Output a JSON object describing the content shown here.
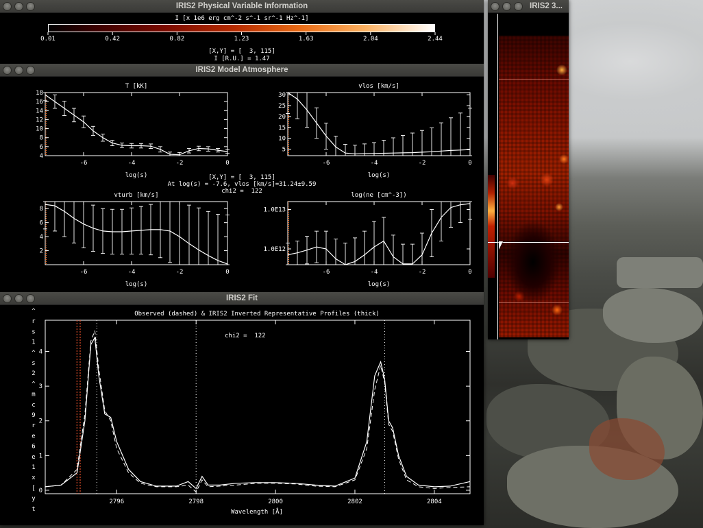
{
  "windows": {
    "info": {
      "title": "IRIS2 Physical Variable Information",
      "colorbar": {
        "label": "I [x 1e6 erg cm^-2 s^-1 sr^-1 Hz^-1]",
        "ticks": [
          "0.01",
          "0.42",
          "0.82",
          "1.23",
          "1.63",
          "2.04",
          "2.44"
        ]
      },
      "xy": "[X,Y] = [  3, 115]",
      "intensity": "I [R.U.] = 1.47"
    },
    "atmos": {
      "title": "IRIS2 Model Atmosphere",
      "center_text": {
        "xy": "[X,Y] = [  3, 115]",
        "at": "At log(s) = -7.6, vlos [km/s]=31.24±9.59",
        "chi2": "chi2 =  122"
      },
      "plots": {
        "T": {
          "title": "T [kK]",
          "xlabel": "log(s)",
          "yticks": [
            "4",
            "6",
            "8",
            "10",
            "12",
            "14",
            "16",
            "18"
          ],
          "xticks": [
            "-6",
            "-4",
            "-2",
            "0"
          ]
        },
        "vlos": {
          "title": "vlos [km/s]",
          "xlabel": "log(s)",
          "yticks": [
            "5",
            "10",
            "15",
            "20",
            "25",
            "30"
          ],
          "xticks": [
            "-6",
            "-4",
            "-2",
            "0"
          ]
        },
        "vturb": {
          "title": "vturb [km/s]",
          "xlabel": "log(s)",
          "yticks": [
            "2",
            "4",
            "6",
            "8"
          ],
          "xticks": [
            "-6",
            "-4",
            "-2",
            "0"
          ]
        },
        "ne": {
          "title": "log(ne [cm^-3])",
          "xlabel": "log(s)",
          "yticks": [
            "1.0E12",
            "1.0E13"
          ],
          "xticks": [
            "-6",
            "-4",
            "-2",
            "0"
          ]
        }
      }
    },
    "fit": {
      "title": "IRIS2 Fit",
      "plot_title": "Observed (dashed) & IRIS2 Inverted Representative Profiles (thick)",
      "chi2": "chi2 =  122",
      "xlabel": "Wavelength [Å]",
      "ylabel_chars": [
        "^",
        "r",
        "s",
        "1",
        "^",
        "s",
        "2",
        "^",
        "m",
        "c",
        "9",
        "r",
        "e",
        "6",
        "e",
        "1",
        "x",
        "[",
        "y",
        "t"
      ],
      "xticks": [
        "2796",
        "2798",
        "2800",
        "2802",
        "2804"
      ],
      "yticks": [
        "0",
        "1",
        "2",
        "3",
        "4"
      ]
    },
    "map": {
      "title": "IRIS2 3..."
    }
  },
  "chart_data": [
    {
      "type": "line",
      "title": "T [kK]",
      "xlabel": "log(s)",
      "xlim": [
        -7.6,
        0
      ],
      "ylim": [
        4,
        18
      ],
      "x": [
        -7.6,
        -7.2,
        -6.8,
        -6.4,
        -6.0,
        -5.6,
        -5.2,
        -4.8,
        -4.4,
        -4.0,
        -3.6,
        -3.2,
        -2.8,
        -2.4,
        -2.0,
        -1.6,
        -1.2,
        -0.8,
        -0.4,
        0
      ],
      "series": [
        {
          "values": [
            17.5,
            16,
            14.5,
            13,
            11.5,
            9.5,
            8,
            6.8,
            6.3,
            6.2,
            6.2,
            6.1,
            5.4,
            4.3,
            4.2,
            5.1,
            5.6,
            5.5,
            5.2,
            4.9
          ],
          "err": [
            1.3,
            1.5,
            1.6,
            1.5,
            1.3,
            1.0,
            0.8,
            0.6,
            0.5,
            0.5,
            0.5,
            0.5,
            0.6,
            0.5,
            0.5,
            0.5,
            0.5,
            0.5,
            0.4,
            0.4
          ]
        }
      ]
    },
    {
      "type": "line",
      "title": "vlos [km/s]",
      "xlabel": "log(s)",
      "xlim": [
        -7.6,
        0
      ],
      "ylim": [
        2,
        31
      ],
      "x": [
        -7.6,
        -7.2,
        -6.8,
        -6.4,
        -6.0,
        -5.6,
        -5.2,
        -4.8,
        -4.4,
        -4.0,
        -3.6,
        -3.2,
        -2.8,
        -2.4,
        -2.0,
        -1.6,
        -1.2,
        -0.8,
        -0.4,
        0
      ],
      "series": [
        {
          "values": [
            31,
            28,
            23,
            17,
            11,
            6,
            3.2,
            2.8,
            2.9,
            3,
            3.1,
            3.2,
            3.3,
            3.4,
            3.6,
            3.8,
            4.1,
            4.4,
            4.6,
            4.8
          ],
          "err": [
            9.6,
            9,
            8,
            7,
            6,
            5,
            4,
            4,
            4.5,
            5,
            6,
            7,
            8,
            9,
            10,
            11,
            13,
            15,
            17,
            19
          ]
        }
      ]
    },
    {
      "type": "line",
      "title": "vturb [km/s]",
      "xlabel": "log(s)",
      "xlim": [
        -7.6,
        0
      ],
      "ylim": [
        0,
        9
      ],
      "x": [
        -7.6,
        -7.2,
        -6.8,
        -6.4,
        -6.0,
        -5.6,
        -5.2,
        -4.8,
        -4.4,
        -4.0,
        -3.6,
        -3.2,
        -2.8,
        -2.4,
        -2.0,
        -1.6,
        -1.2,
        -0.8,
        -0.4,
        0
      ],
      "series": [
        {
          "values": [
            8.6,
            8.4,
            7.6,
            6.6,
            5.8,
            5.2,
            4.8,
            4.7,
            4.7,
            4.8,
            4.9,
            5,
            5,
            4.8,
            4,
            3,
            2.1,
            1.3,
            0.6,
            0.1
          ],
          "err": [
            3.5,
            3.6,
            3.6,
            3.5,
            3.4,
            3.3,
            3.2,
            3.2,
            3.2,
            3.3,
            3.4,
            3.6,
            4,
            4.5,
            5,
            5.5,
            6,
            6.3,
            6.6,
            7
          ]
        }
      ]
    },
    {
      "type": "line",
      "title": "log(ne [cm^-3])",
      "xlabel": "log(s)",
      "xlim": [
        -7.6,
        0
      ],
      "x": [
        -7.6,
        -7.2,
        -6.8,
        -6.4,
        -6.0,
        -5.6,
        -5.2,
        -4.8,
        -4.4,
        -4.0,
        -3.6,
        -3.2,
        -2.8,
        -2.4,
        -2.0,
        -1.6,
        -1.2,
        -0.8,
        -0.4,
        0
      ],
      "series": [
        {
          "values": [
            11.85,
            11.9,
            11.97,
            12.05,
            12.0,
            11.75,
            11.6,
            11.68,
            11.85,
            12.05,
            12.2,
            11.8,
            11.62,
            11.62,
            11.85,
            12.4,
            12.8,
            13.05,
            13.12,
            13.15
          ],
          "err": [
            0.3,
            0.3,
            0.35,
            0.4,
            0.45,
            0.5,
            0.55,
            0.6,
            0.6,
            0.65,
            0.6,
            0.55,
            0.5,
            0.5,
            0.55,
            0.6,
            0.6,
            0.5,
            0.45,
            0.4
          ]
        }
      ]
    },
    {
      "type": "line",
      "title": "Observed (dashed) & IRIS2 Inverted Representative Profiles (thick)",
      "xlabel": "Wavelength [Å]",
      "xlim": [
        2794.2,
        2804.9
      ],
      "ylim": [
        -0.1,
        4.9
      ],
      "x": [
        2794.2,
        2794.6,
        2795.0,
        2795.2,
        2795.35,
        2795.45,
        2795.55,
        2795.7,
        2795.85,
        2796.0,
        2796.3,
        2796.6,
        2797.0,
        2797.5,
        2797.8,
        2798.0,
        2798.15,
        2798.3,
        2798.6,
        2799.0,
        2799.5,
        2800.0,
        2800.5,
        2801.0,
        2801.5,
        2802.0,
        2802.3,
        2802.5,
        2802.65,
        2802.75,
        2802.85,
        2802.95,
        2803.1,
        2803.3,
        2803.6,
        2804.0,
        2804.4,
        2804.9
      ],
      "series": [
        {
          "name": "Observed (dashed)",
          "values": [
            0.1,
            0.15,
            0.6,
            2.2,
            4.3,
            4.6,
            3.5,
            2.3,
            2.0,
            1.2,
            0.5,
            0.2,
            0.1,
            0.1,
            0.15,
            -0.05,
            0.3,
            0.1,
            0.12,
            0.15,
            0.2,
            0.2,
            0.18,
            0.12,
            0.1,
            0.3,
            1.2,
            2.9,
            3.6,
            3.1,
            1.9,
            1.7,
            0.9,
            0.3,
            0.1,
            0.05,
            0.08,
            0.1
          ]
        },
        {
          "name": "IRIS2 Inverted (thick)",
          "values": [
            0.1,
            0.15,
            0.5,
            2.0,
            4.2,
            4.4,
            3.3,
            2.2,
            2.1,
            1.4,
            0.6,
            0.25,
            0.12,
            0.12,
            0.25,
            0.05,
            0.4,
            0.15,
            0.15,
            0.2,
            0.22,
            0.22,
            0.2,
            0.15,
            0.12,
            0.35,
            1.4,
            3.3,
            3.7,
            3.2,
            2.0,
            1.8,
            1.0,
            0.4,
            0.15,
            0.1,
            0.12,
            0.25
          ]
        }
      ]
    }
  ]
}
